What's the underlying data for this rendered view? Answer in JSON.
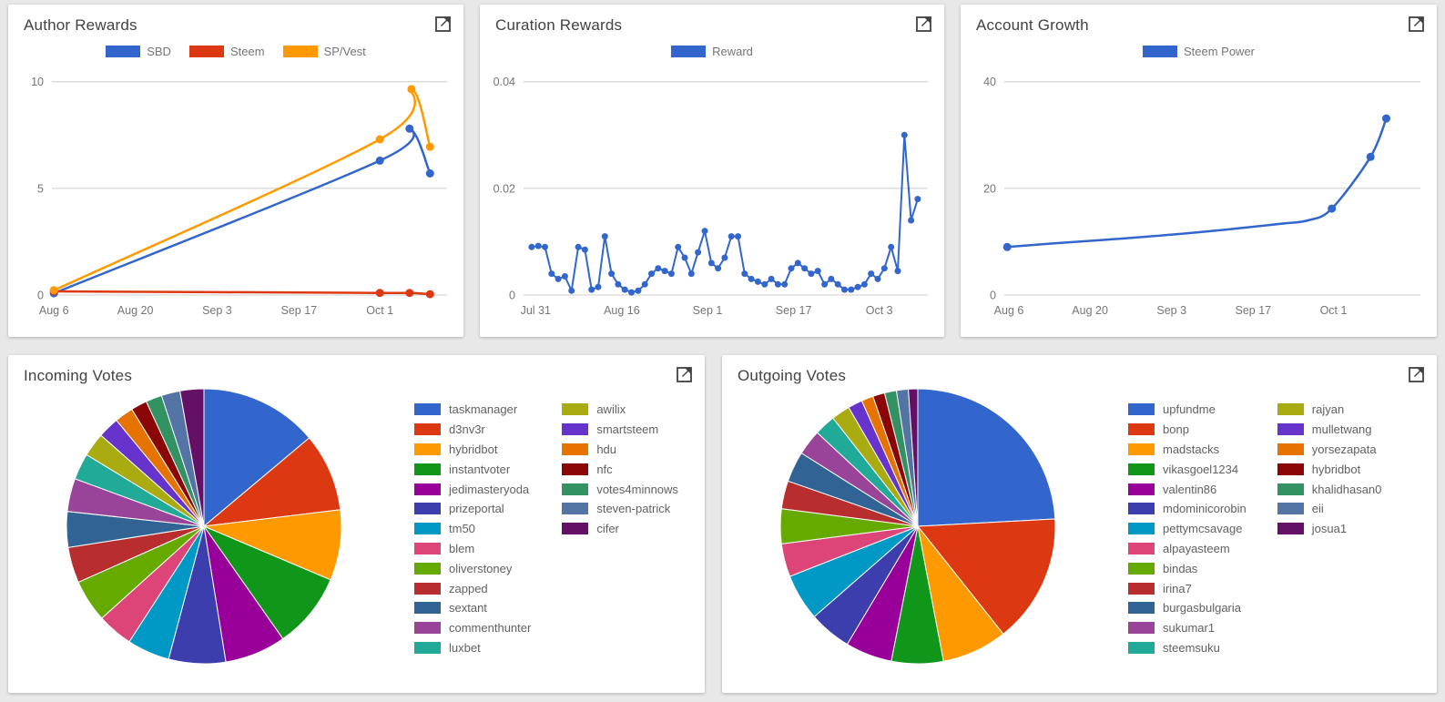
{
  "ui": {
    "background_color": "#e8e8e8",
    "card_color": "#ffffff",
    "title_color": "#424242",
    "legend_text_color": "#757575",
    "pie_legend_text_color": "#616161",
    "gridline_color": "#cccccc",
    "accent_color": "#3366CC"
  },
  "chart_data": [
    {
      "id": "author-rewards",
      "type": "line",
      "title": "Author Rewards",
      "smooth": true,
      "line_width": 2.5,
      "dot_r": 4.5,
      "y_max": 10.5,
      "ylim": [
        0,
        10
      ],
      "grid": true,
      "legend_position": "top",
      "y_ticks": [
        {
          "label": "0",
          "v": 0
        },
        {
          "label": "5",
          "v": 5
        },
        {
          "label": "10",
          "v": 10
        }
      ],
      "x_ticks": [
        {
          "label": "Aug 6",
          "x": 0.005
        },
        {
          "label": "Aug 20",
          "x": 0.211
        },
        {
          "label": "Sep 3",
          "x": 0.418
        },
        {
          "label": "Sep 17",
          "x": 0.625
        },
        {
          "label": "Oct 1",
          "x": 0.83
        }
      ],
      "series": [
        {
          "name": "SBD",
          "color": "#3366CC",
          "dots": true,
          "points": [
            [
              0.005,
              0.08
            ],
            [
              0.83,
              6.3
            ],
            [
              0.905,
              7.8
            ],
            [
              0.957,
              5.7
            ]
          ]
        },
        {
          "name": "Steem",
          "color": "#DC3912",
          "dots": true,
          "points": [
            [
              0.005,
              0.17
            ],
            [
              0.83,
              0.1
            ],
            [
              0.905,
              0.1
            ],
            [
              0.957,
              0.04
            ]
          ]
        },
        {
          "name": "SP/Vest",
          "color": "#FF9900",
          "dots": true,
          "points": [
            [
              0.005,
              0.22
            ],
            [
              0.83,
              7.3
            ],
            [
              0.91,
              9.65
            ],
            [
              0.957,
              6.95
            ]
          ]
        }
      ]
    },
    {
      "id": "curation-rewards",
      "type": "line",
      "title": "Curation Rewards",
      "smooth": false,
      "line_width": 2,
      "dot_r": 3.5,
      "y_max": 0.042,
      "ylim": [
        0,
        0.04
      ],
      "grid": true,
      "legend_position": "top",
      "y_ticks": [
        {
          "label": "0",
          "v": 0
        },
        {
          "label": "0.02",
          "v": 0.02
        },
        {
          "label": "0.04",
          "v": 0.04
        }
      ],
      "x_ticks": [
        {
          "label": "Jul 31",
          "x": 0.03
        },
        {
          "label": "Aug 16",
          "x": 0.243
        },
        {
          "label": "Sep 1",
          "x": 0.455
        },
        {
          "label": "Sep 17",
          "x": 0.668
        },
        {
          "label": "Oct 3",
          "x": 0.88
        }
      ],
      "series": [
        {
          "name": "Reward",
          "color": "#3366CC",
          "dots": true,
          "x_range": [
            0.02,
            0.975
          ],
          "values": [
            0.009,
            0.0092,
            0.009,
            0.004,
            0.003,
            0.0035,
            0.0008,
            0.009,
            0.0085,
            0.001,
            0.0015,
            0.011,
            0.004,
            0.002,
            0.001,
            0.0005,
            0.0008,
            0.002,
            0.004,
            0.005,
            0.0045,
            0.004,
            0.009,
            0.007,
            0.004,
            0.008,
            0.012,
            0.006,
            0.005,
            0.007,
            0.011,
            0.011,
            0.004,
            0.003,
            0.0025,
            0.002,
            0.003,
            0.002,
            0.002,
            0.005,
            0.006,
            0.005,
            0.004,
            0.0045,
            0.002,
            0.003,
            0.002,
            0.001,
            0.001,
            0.0015,
            0.002,
            0.004,
            0.003,
            0.005,
            0.009,
            0.0045,
            0.03,
            0.014,
            0.018
          ]
        }
      ]
    },
    {
      "id": "account-growth",
      "type": "line",
      "title": "Account Growth",
      "smooth": true,
      "line_width": 2.5,
      "dot_r": 4.5,
      "y_max": 42,
      "ylim": [
        0,
        40
      ],
      "grid": true,
      "legend_position": "top",
      "y_ticks": [
        {
          "label": "0",
          "v": 0
        },
        {
          "label": "20",
          "v": 20
        },
        {
          "label": "40",
          "v": 40
        }
      ],
      "x_ticks": [
        {
          "label": "Aug 6",
          "x": 0.011
        },
        {
          "label": "Aug 20",
          "x": 0.206
        },
        {
          "label": "Sep 3",
          "x": 0.402
        },
        {
          "label": "Sep 17",
          "x": 0.598
        },
        {
          "label": "Oct 1",
          "x": 0.791
        }
      ],
      "series": [
        {
          "name": "Steem Power",
          "color": "#3366CC",
          "dots": [
            0,
            7,
            8,
            9
          ],
          "points": [
            [
              0.007,
              9.0
            ],
            [
              0.12,
              9.7
            ],
            [
              0.25,
              10.4
            ],
            [
              0.4,
              11.3
            ],
            [
              0.55,
              12.4
            ],
            [
              0.67,
              13.4
            ],
            [
              0.73,
              14.0
            ],
            [
              0.787,
              16.2
            ],
            [
              0.88,
              25.9
            ],
            [
              0.918,
              33.1
            ]
          ]
        }
      ]
    },
    {
      "id": "incoming-votes",
      "type": "pie",
      "title": "Incoming Votes",
      "legend_position": "right",
      "legend_rows": 13,
      "slices": [
        {
          "label": "taskmanager",
          "value": 13.9,
          "color": "#3366CC"
        },
        {
          "label": "d3nv3r",
          "value": 9.2,
          "color": "#DC3912"
        },
        {
          "label": "hybridbot",
          "value": 8.3,
          "color": "#FF9900"
        },
        {
          "label": "instantvoter",
          "value": 8.9,
          "color": "#109618"
        },
        {
          "label": "jedimasteryoda",
          "value": 7.2,
          "color": "#990099"
        },
        {
          "label": "prizeportal",
          "value": 6.7,
          "color": "#3B3EAC"
        },
        {
          "label": "tm50",
          "value": 5.0,
          "color": "#0099C6"
        },
        {
          "label": "blem",
          "value": 4.2,
          "color": "#DD4477"
        },
        {
          "label": "oliverstoney",
          "value": 5.0,
          "color": "#66AA00"
        },
        {
          "label": "zapped",
          "value": 4.2,
          "color": "#B82E2E"
        },
        {
          "label": "sextant",
          "value": 4.2,
          "color": "#316395"
        },
        {
          "label": "commenthunter",
          "value": 3.9,
          "color": "#994499"
        },
        {
          "label": "luxbet",
          "value": 3.1,
          "color": "#22AA99"
        },
        {
          "label": "awilix",
          "value": 2.8,
          "color": "#AAAA11"
        },
        {
          "label": "smartsteem",
          "value": 2.5,
          "color": "#6633CC"
        },
        {
          "label": "hdu",
          "value": 2.2,
          "color": "#E67300"
        },
        {
          "label": "nfc",
          "value": 1.9,
          "color": "#8B0707"
        },
        {
          "label": "votes4minnows",
          "value": 1.9,
          "color": "#329262"
        },
        {
          "label": "steven-patrick",
          "value": 2.2,
          "color": "#5574A6"
        },
        {
          "label": "cifer",
          "value": 2.8,
          "color": "#651067"
        }
      ]
    },
    {
      "id": "outgoing-votes",
      "type": "pie",
      "title": "Outgoing Votes",
      "legend_position": "right",
      "legend_rows": 13,
      "slices": [
        {
          "label": "upfundme",
          "value": 24.2,
          "color": "#3366CC"
        },
        {
          "label": "bonp",
          "value": 15.2,
          "color": "#DC3912"
        },
        {
          "label": "madstacks",
          "value": 7.7,
          "color": "#FF9900"
        },
        {
          "label": "vikasgoel1234",
          "value": 6.1,
          "color": "#109618"
        },
        {
          "label": "valentin86",
          "value": 5.5,
          "color": "#990099"
        },
        {
          "label": "mdominicorobin",
          "value": 5.0,
          "color": "#3B3EAC"
        },
        {
          "label": "pettymcsavage",
          "value": 5.5,
          "color": "#0099C6"
        },
        {
          "label": "alpayasteem",
          "value": 3.9,
          "color": "#DD4477"
        },
        {
          "label": "bindas",
          "value": 4.1,
          "color": "#66AA00"
        },
        {
          "label": "irina7",
          "value": 3.3,
          "color": "#B82E2E"
        },
        {
          "label": "burgasbulgaria",
          "value": 3.6,
          "color": "#316395"
        },
        {
          "label": "sukumar1",
          "value": 3.0,
          "color": "#994499"
        },
        {
          "label": "steemsuku",
          "value": 2.5,
          "color": "#22AA99"
        },
        {
          "label": "rajyan",
          "value": 2.2,
          "color": "#AAAA11"
        },
        {
          "label": "mulletwang",
          "value": 1.7,
          "color": "#6633CC"
        },
        {
          "label": "yorsezapata",
          "value": 1.4,
          "color": "#E67300"
        },
        {
          "label": "hybridbot",
          "value": 1.4,
          "color": "#8B0707"
        },
        {
          "label": "khalidhasan0",
          "value": 1.4,
          "color": "#329262"
        },
        {
          "label": "eii",
          "value": 1.4,
          "color": "#5574A6"
        },
        {
          "label": "josua1",
          "value": 1.1,
          "color": "#651067"
        }
      ]
    }
  ]
}
